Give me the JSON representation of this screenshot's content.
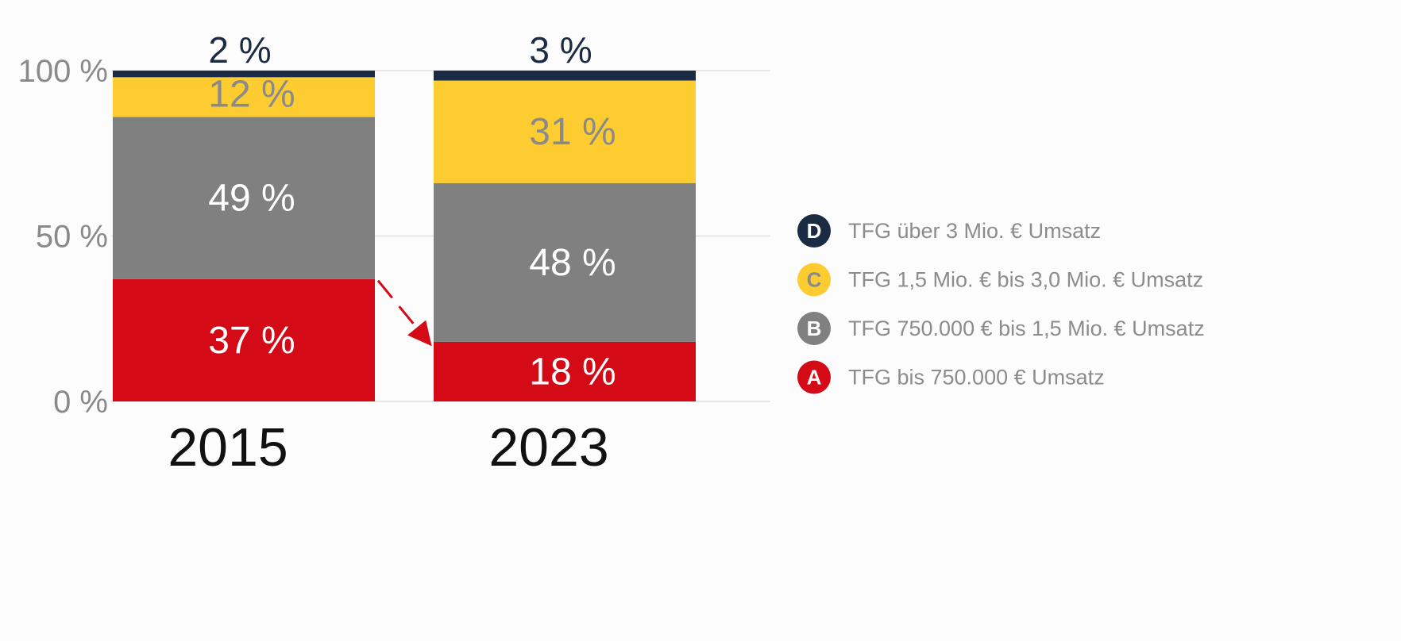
{
  "chart_data": {
    "type": "bar",
    "stacked": true,
    "categories": [
      "2015",
      "2023"
    ],
    "ylim": [
      0,
      100
    ],
    "y_ticks": [
      {
        "value": 0,
        "label": "0 %"
      },
      {
        "value": 50,
        "label": "50 %"
      },
      {
        "value": 100,
        "label": "100 %"
      }
    ],
    "grid": true,
    "legend_position": "right",
    "series": [
      {
        "name": "TFG bis 750.000 € Umsatz",
        "letter": "A",
        "color": "#d50a17",
        "label_color": "#ffffff",
        "values": [
          37,
          18
        ],
        "labels": [
          "37 %",
          "18 %"
        ]
      },
      {
        "name": "TFG 750.000 € bis 1,5 Mio. € Umsatz",
        "letter": "B",
        "color": "#808080",
        "label_color": "#ffffff",
        "values": [
          49,
          48
        ],
        "labels": [
          "49 %",
          "48 %"
        ]
      },
      {
        "name": "TFG 1,5 Mio. € bis 3,0 Mio. € Umsatz",
        "letter": "C",
        "color": "#fdcc30",
        "label_color": "#8a8a8a",
        "values": [
          12,
          31
        ],
        "labels": [
          "12 %",
          "31 %"
        ]
      },
      {
        "name": "TFG über 3 Mio. € Umsatz",
        "letter": "D",
        "color": "#1c2b44",
        "label_color": "#1c2b44",
        "values": [
          2,
          3
        ],
        "labels": [
          "2 %",
          "3 %"
        ]
      }
    ],
    "arrow_color": "#d50a17"
  }
}
